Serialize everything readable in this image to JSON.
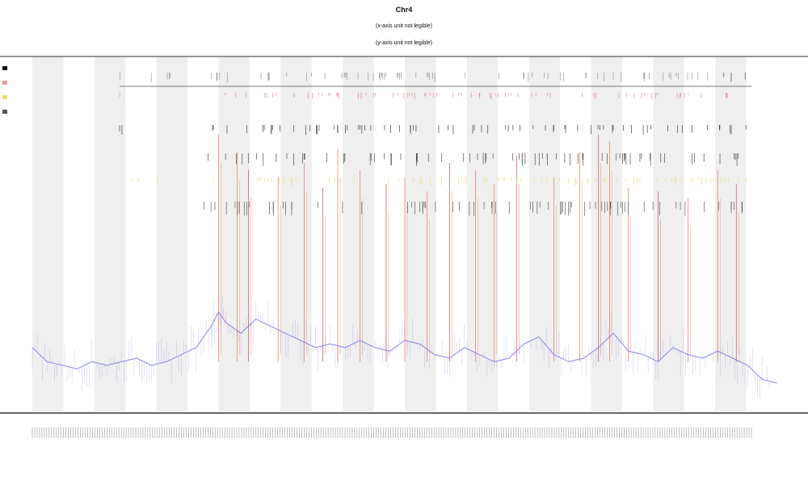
{
  "chart_data": {
    "type": "line",
    "title": "Chr4",
    "subtitles": [
      "(x-axis unit not legible)",
      "(y-axis unit not legible)"
    ],
    "xlabel": "",
    "ylabel": "",
    "grid": false,
    "legend": {
      "placement": "top-left",
      "entries": [
        {
          "name": "",
          "color": "#111111"
        },
        {
          "name": "",
          "color": "#e8a0a0"
        },
        {
          "name": "",
          "color": "#e8e060"
        },
        {
          "name": "",
          "color": "#555555"
        }
      ]
    },
    "band_count": 12,
    "x_range": [
      0,
      100
    ],
    "y_range": [
      0,
      100
    ],
    "series": [
      {
        "color": "#7777dd",
        "x": [
          0,
          2,
          4,
          6,
          8,
          10,
          12,
          14,
          16,
          18,
          20,
          22,
          24,
          25,
          26,
          28,
          30,
          32,
          34,
          36,
          38,
          40,
          42,
          44,
          46,
          48,
          50,
          52,
          54,
          56,
          58,
          60,
          62,
          64,
          66,
          68,
          70,
          72,
          74,
          76,
          78,
          80,
          82,
          84,
          86,
          88,
          90,
          92,
          94,
          96,
          98,
          100
        ],
        "y": [
          18,
          14,
          13,
          12,
          14,
          13,
          14,
          15,
          13,
          14,
          16,
          18,
          24,
          28,
          25,
          22,
          26,
          24,
          22,
          20,
          18,
          19,
          18,
          20,
          18,
          17,
          20,
          19,
          16,
          15,
          18,
          16,
          14,
          15,
          19,
          21,
          16,
          14,
          15,
          18,
          22,
          17,
          16,
          14,
          18,
          16,
          15,
          17,
          15,
          13,
          9,
          8
        ]
      }
    ],
    "spikes": [
      {
        "x": 25.0,
        "h": 60,
        "color": "#e07050"
      },
      {
        "x": 27.5,
        "h": 55,
        "color": "#e07050"
      },
      {
        "x": 29.0,
        "h": 50,
        "color": "#c04040"
      },
      {
        "x": 33.0,
        "h": 48,
        "color": "#e07050"
      },
      {
        "x": 36.5,
        "h": 52,
        "color": "#e07050"
      },
      {
        "x": 39.0,
        "h": 45,
        "color": "#c04040"
      },
      {
        "x": 41.0,
        "h": 56,
        "color": "#e07050"
      },
      {
        "x": 44.0,
        "h": 50,
        "color": "#e07050"
      },
      {
        "x": 47.5,
        "h": 46,
        "color": "#c04040"
      },
      {
        "x": 50.0,
        "h": 48,
        "color": "#e07050"
      },
      {
        "x": 53.0,
        "h": 44,
        "color": "#e07050"
      },
      {
        "x": 56.0,
        "h": 52,
        "color": "#c04040"
      },
      {
        "x": 59.5,
        "h": 50,
        "color": "#e07050"
      },
      {
        "x": 62.0,
        "h": 46,
        "color": "#e07050"
      },
      {
        "x": 65.0,
        "h": 54,
        "color": "#c04040"
      },
      {
        "x": 70.0,
        "h": 48,
        "color": "#e07050"
      },
      {
        "x": 73.5,
        "h": 55,
        "color": "#e07050"
      },
      {
        "x": 76.0,
        "h": 60,
        "color": "#c04040"
      },
      {
        "x": 77.5,
        "h": 58,
        "color": "#e07050"
      },
      {
        "x": 80.0,
        "h": 45,
        "color": "#e07050"
      },
      {
        "x": 84.0,
        "h": 44,
        "color": "#c04040"
      },
      {
        "x": 88.0,
        "h": 42,
        "color": "#e07050"
      },
      {
        "x": 92.0,
        "h": 50,
        "color": "#e07050"
      },
      {
        "x": 94.5,
        "h": 46,
        "color": "#c04040"
      }
    ],
    "tick_label_count": 300
  }
}
